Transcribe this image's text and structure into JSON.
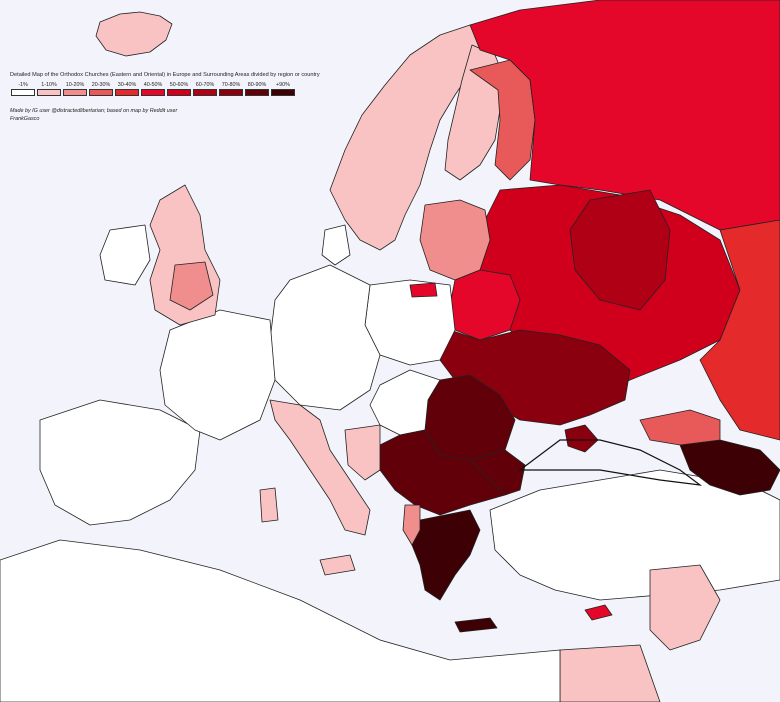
{
  "title": "Detailed Map of the Orthodox Churches (Eastern and Oriental) in Europe and Surrounding Areas divided by region or country",
  "legend": [
    {
      "label": "-1%",
      "color": "#ffffff"
    },
    {
      "label": "1-10%",
      "color": "#f9c3c3"
    },
    {
      "label": "10-20%",
      "color": "#f08e8e"
    },
    {
      "label": "20-30%",
      "color": "#e85a5a"
    },
    {
      "label": "30-40%",
      "color": "#e42a2a"
    },
    {
      "label": "40-50%",
      "color": "#e4072a"
    },
    {
      "label": "50-60%",
      "color": "#d0001c"
    },
    {
      "label": "60-70%",
      "color": "#b00015"
    },
    {
      "label": "70-80%",
      "color": "#8a000e"
    },
    {
      "label": "80-90%",
      "color": "#62000a"
    },
    {
      "label": "+90%",
      "color": "#3d0004"
    }
  ],
  "credit": "Made by IG user @distractedlibertarian; based on map by Reddit user FrankGasco",
  "colors": {
    "sea": "#f3f4fb",
    "border": "#222222"
  }
}
